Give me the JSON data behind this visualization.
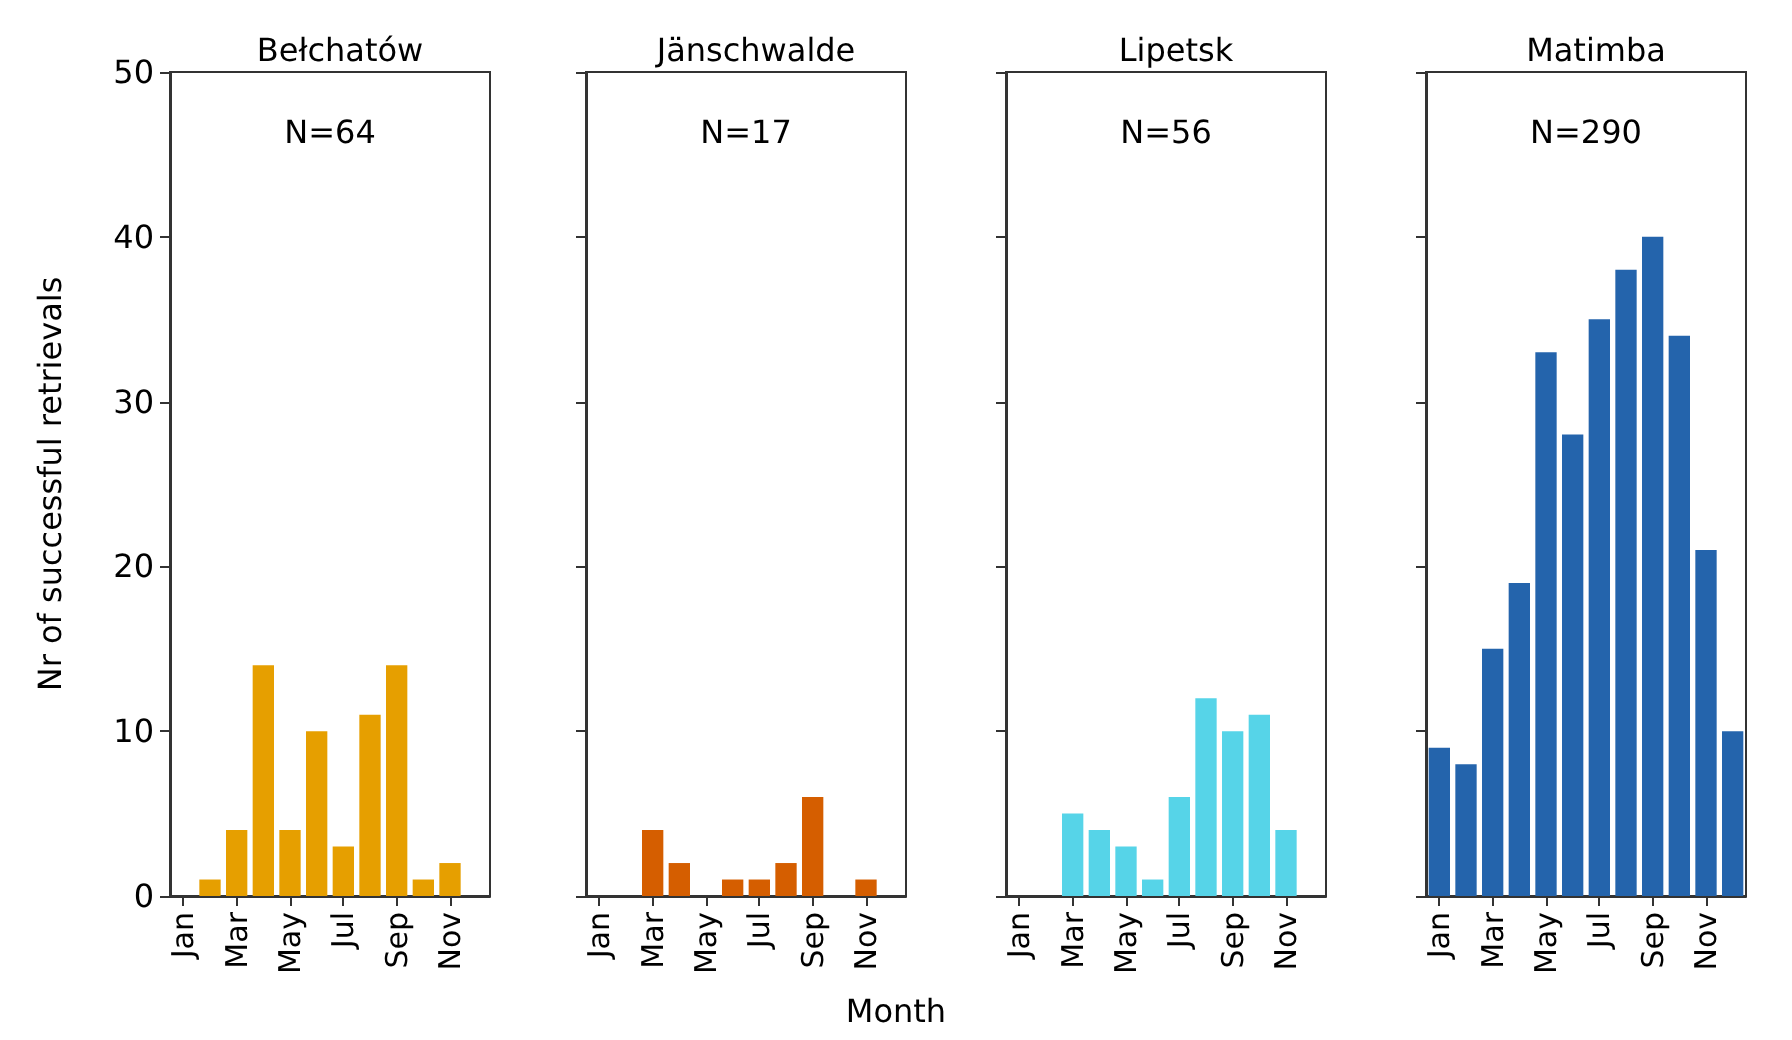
{
  "chart_data": [
    {
      "type": "bar",
      "title": "Bełchatów",
      "ylabel": "Nr of successful retrievals",
      "annotations": [
        "N=64"
      ],
      "categories": [
        "Jan",
        null,
        "Mar",
        null,
        "May",
        null,
        "Jul",
        null,
        "Sep",
        null,
        "Nov",
        null
      ],
      "values": [
        0,
        1,
        4,
        14,
        4,
        10,
        3,
        11,
        14,
        1,
        2,
        0
      ],
      "color": "#e69f00",
      "ylim": [
        0,
        50
      ],
      "yticks": [
        0,
        10,
        20,
        30,
        40,
        50
      ],
      "grid": false
    },
    {
      "type": "bar",
      "title": "Jänschwalde",
      "xlabel": "Month",
      "annotations": [
        "N=17"
      ],
      "categories": [
        "Jan",
        null,
        "Mar",
        null,
        "May",
        null,
        "Jul",
        null,
        "Sep",
        null,
        "Nov",
        null
      ],
      "values": [
        0,
        0,
        4,
        2,
        0,
        1,
        1,
        2,
        6,
        0,
        1,
        0
      ],
      "color": "#d55e00",
      "ylim": [
        0,
        50
      ],
      "yticks": [
        0,
        10,
        20,
        30,
        40,
        50
      ],
      "grid": false,
      "tick_labels": "x"
    },
    {
      "type": "bar",
      "title": "Lipetsk",
      "annotations": [
        "N=56"
      ],
      "categories": [
        "Jan",
        null,
        "Mar",
        null,
        "May",
        null,
        "Jul",
        null,
        "Sep",
        null,
        "Nov",
        null
      ],
      "values": [
        0,
        0,
        5,
        4,
        3,
        1,
        6,
        12,
        10,
        11,
        4,
        0
      ],
      "color": "#56d4e8",
      "ylim": [
        0,
        50
      ],
      "yticks": [
        0,
        10,
        20,
        30,
        40,
        50
      ],
      "grid": false,
      "tick_labels": "x"
    },
    {
      "type": "bar",
      "title": "Matimba",
      "annotations": [
        "N=290"
      ],
      "categories": [
        "Jan",
        null,
        "Mar",
        null,
        "May",
        null,
        "Jul",
        null,
        "Sep",
        null,
        "Nov",
        null
      ],
      "values": [
        9,
        8,
        15,
        19,
        33,
        28,
        35,
        38,
        40,
        34,
        21,
        10
      ],
      "color": "#2464ac",
      "ylim": [
        0,
        50
      ],
      "yticks": [
        0,
        10,
        20,
        30,
        40,
        50
      ],
      "grid": false,
      "tick_labels": "x"
    }
  ]
}
